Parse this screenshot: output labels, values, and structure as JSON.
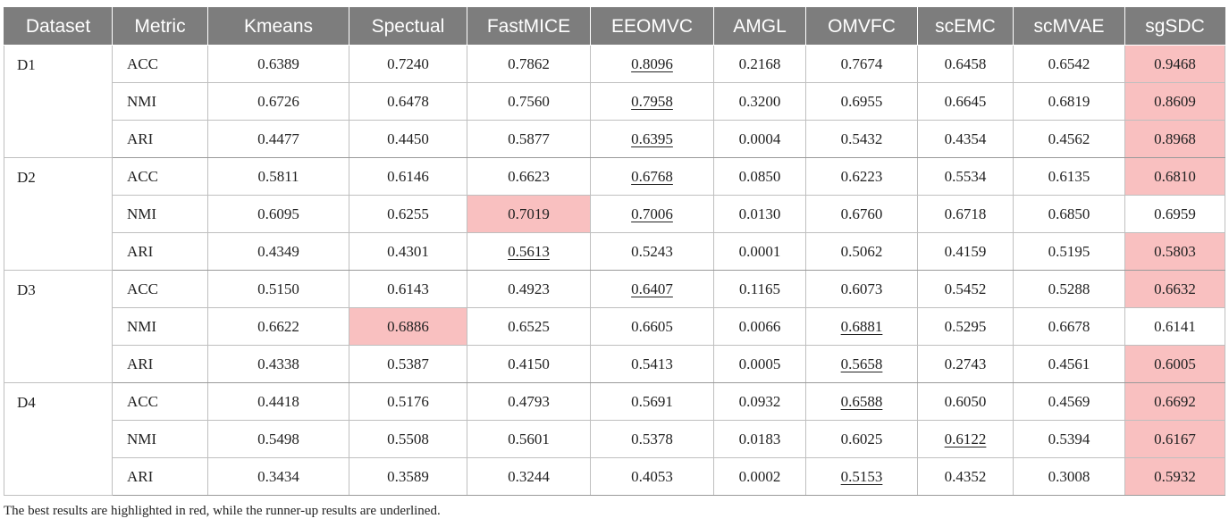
{
  "headers": [
    "Dataset",
    "Metric",
    "Kmeans",
    "Spectual",
    "FastMICE",
    "EEOMVC",
    "AMGL",
    "OMVFC",
    "scEMC",
    "scMVAE",
    "sgSDC"
  ],
  "groups": [
    {
      "dataset": "D1",
      "rows": [
        {
          "metric": "ACC",
          "values": [
            "0.6389",
            "0.7240",
            "0.7862",
            "0.8096",
            "0.2168",
            "0.7674",
            "0.6458",
            "0.6542",
            "0.9468"
          ],
          "best": 8,
          "runner": 3
        },
        {
          "metric": "NMI",
          "values": [
            "0.6726",
            "0.6478",
            "0.7560",
            "0.7958",
            "0.3200",
            "0.6955",
            "0.6645",
            "0.6819",
            "0.8609"
          ],
          "best": 8,
          "runner": 3
        },
        {
          "metric": "ARI",
          "values": [
            "0.4477",
            "0.4450",
            "0.5877",
            "0.6395",
            "0.0004",
            "0.5432",
            "0.4354",
            "0.4562",
            "0.8968"
          ],
          "best": 8,
          "runner": 3
        }
      ]
    },
    {
      "dataset": "D2",
      "rows": [
        {
          "metric": "ACC",
          "values": [
            "0.5811",
            "0.6146",
            "0.6623",
            "0.6768",
            "0.0850",
            "0.6223",
            "0.5534",
            "0.6135",
            "0.6810"
          ],
          "best": 8,
          "runner": 3
        },
        {
          "metric": "NMI",
          "values": [
            "0.6095",
            "0.6255",
            "0.7019",
            "0.7006",
            "0.0130",
            "0.6760",
            "0.6718",
            "0.6850",
            "0.6959"
          ],
          "best": 2,
          "runner": 3
        },
        {
          "metric": "ARI",
          "values": [
            "0.4349",
            "0.4301",
            "0.5613",
            "0.5243",
            "0.0001",
            "0.5062",
            "0.4159",
            "0.5195",
            "0.5803"
          ],
          "best": 8,
          "runner": 2
        }
      ]
    },
    {
      "dataset": "D3",
      "rows": [
        {
          "metric": "ACC",
          "values": [
            "0.5150",
            "0.6143",
            "0.4923",
            "0.6407",
            "0.1165",
            "0.6073",
            "0.5452",
            "0.5288",
            "0.6632"
          ],
          "best": 8,
          "runner": 3
        },
        {
          "metric": "NMI",
          "values": [
            "0.6622",
            "0.6886",
            "0.6525",
            "0.6605",
            "0.0066",
            "0.6881",
            "0.5295",
            "0.6678",
            "0.6141"
          ],
          "best": 1,
          "runner": 5
        },
        {
          "metric": "ARI",
          "values": [
            "0.4338",
            "0.5387",
            "0.4150",
            "0.5413",
            "0.0005",
            "0.5658",
            "0.2743",
            "0.4561",
            "0.6005"
          ],
          "best": 8,
          "runner": 5
        }
      ]
    },
    {
      "dataset": "D4",
      "rows": [
        {
          "metric": "ACC",
          "values": [
            "0.4418",
            "0.5176",
            "0.4793",
            "0.5691",
            "0.0932",
            "0.6588",
            "0.6050",
            "0.4569",
            "0.6692"
          ],
          "best": 8,
          "runner": 5
        },
        {
          "metric": "NMI",
          "values": [
            "0.5498",
            "0.5508",
            "0.5601",
            "0.5378",
            "0.0183",
            "0.6025",
            "0.6122",
            "0.5394",
            "0.6167"
          ],
          "best": 8,
          "runner": 6
        },
        {
          "metric": "ARI",
          "values": [
            "0.3434",
            "0.3589",
            "0.3244",
            "0.4053",
            "0.0002",
            "0.5153",
            "0.4352",
            "0.3008",
            "0.5932"
          ],
          "best": 8,
          "runner": 5
        }
      ]
    }
  ],
  "caption": "The best results are highlighted in red, while the runner-up results are underlined.",
  "colors": {
    "header_bg": "#7d7d7d",
    "best_bg": "#f9c0c0",
    "grid": "#bfbfbf"
  }
}
